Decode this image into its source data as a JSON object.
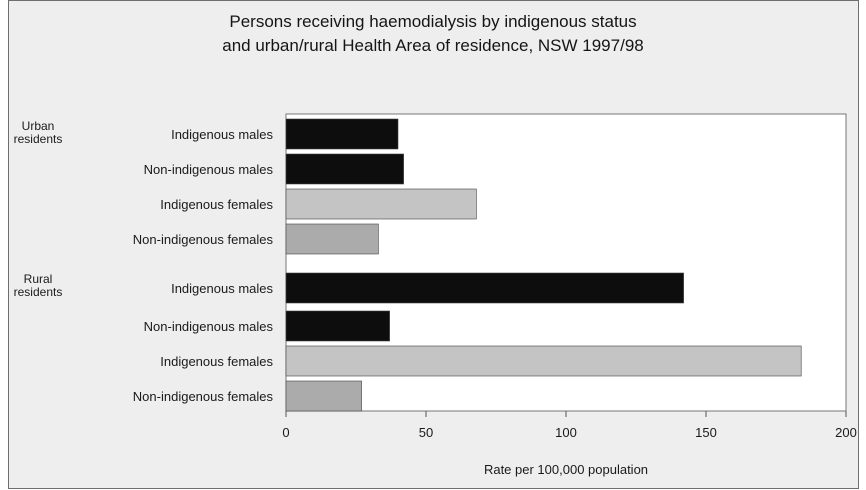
{
  "chart_data": {
    "type": "bar",
    "orientation": "horizontal",
    "title_lines": [
      "Persons receiving haemodialysis by indigenous status",
      "and urban/rural Health Area of residence, NSW 1997/98"
    ],
    "xlabel": "Rate per 100,000 population",
    "ylabel": "",
    "xlim": [
      0,
      200
    ],
    "xticks": [
      0,
      50,
      100,
      150,
      200
    ],
    "grid": false,
    "legend": "none",
    "groups": [
      {
        "label_lines": [
          "Urban",
          "residents"
        ],
        "bars": [
          {
            "category": "Indigenous males",
            "value": 40,
            "color": "#0d0d0d"
          },
          {
            "category": "Non-indigenous males",
            "value": 42,
            "color": "#0d0d0d"
          },
          {
            "category": "Indigenous females",
            "value": 68,
            "color": "#c4c4c4"
          },
          {
            "category": "Non-indigenous females",
            "value": 33,
            "color": "#ababab"
          }
        ]
      },
      {
        "label_lines": [
          "Rural",
          "residents"
        ],
        "bars": [
          {
            "category": "Indigenous males",
            "value": 142,
            "color": "#0d0d0d"
          },
          {
            "category": "Non-indigenous males",
            "value": 37,
            "color": "#0d0d0d"
          },
          {
            "category": "Indigenous females",
            "value": 184,
            "color": "#c4c4c4"
          },
          {
            "category": "Non-indigenous females",
            "value": 27,
            "color": "#ababab"
          }
        ]
      }
    ]
  }
}
